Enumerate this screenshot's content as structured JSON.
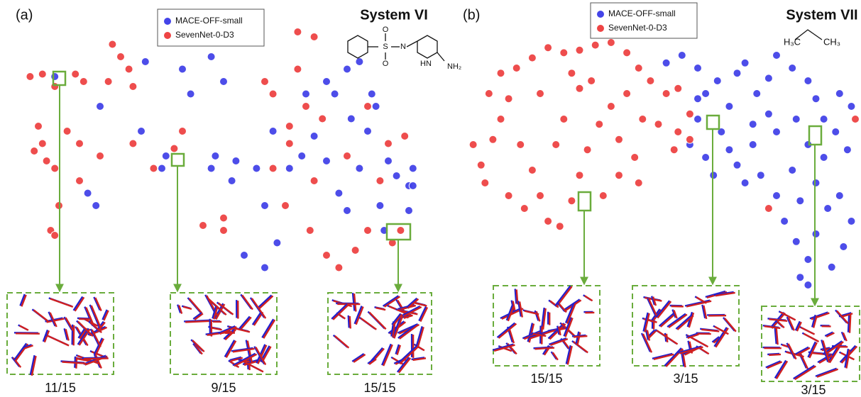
{
  "chart_data": [
    {
      "type": "scatter",
      "label": "(a)",
      "title": "System VI",
      "structure_labels": [
        "O",
        "S",
        "O",
        "N",
        "HN",
        "NH₂"
      ],
      "inset_labels": [
        "11/15",
        "9/15",
        "15/15"
      ],
      "xlim": [
        0,
        100
      ],
      "ylim": [
        0,
        100
      ],
      "series": [
        {
          "name": "MACE-OFF-small",
          "color": "#4444e8",
          "points": [
            [
              9,
              82
            ],
            [
              20,
              70
            ],
            [
              40,
              85
            ],
            [
              42,
              75
            ],
            [
              47,
              90
            ],
            [
              50,
              80
            ],
            [
              31,
              88
            ],
            [
              17,
              35
            ],
            [
              19,
              30
            ],
            [
              35,
              45
            ],
            [
              36,
              50
            ],
            [
              30,
              60
            ],
            [
              48,
              50
            ],
            [
              47,
              45
            ],
            [
              53,
              48
            ],
            [
              52,
              40
            ],
            [
              58,
              45
            ],
            [
              60,
              30
            ],
            [
              63,
              15
            ],
            [
              66,
              45
            ],
            [
              69,
              50
            ],
            [
              72,
              58
            ],
            [
              75,
              80
            ],
            [
              77,
              75
            ],
            [
              80,
              85
            ],
            [
              83,
              88
            ],
            [
              86,
              75
            ],
            [
              85,
              60
            ],
            [
              87,
              70
            ],
            [
              78,
              35
            ],
            [
              80,
              28
            ],
            [
              88,
              30
            ],
            [
              90,
              48
            ],
            [
              92,
              42
            ],
            [
              95,
              38
            ],
            [
              96,
              45
            ],
            [
              96,
              38
            ],
            [
              62,
              60
            ],
            [
              70,
              75
            ],
            [
              81,
              65
            ],
            [
              89,
              20
            ],
            [
              55,
              10
            ],
            [
              60,
              5
            ],
            [
              75,
              48
            ],
            [
              83,
              45
            ],
            [
              95,
              28
            ]
          ]
        },
        {
          "name": "SevenNet-0-D3",
          "color": "#ee4444",
          "points": [
            [
              3,
              82
            ],
            [
              6,
              83
            ],
            [
              9,
              78
            ],
            [
              14,
              83
            ],
            [
              16,
              80
            ],
            [
              22,
              80
            ],
            [
              25,
              90
            ],
            [
              23,
              95
            ],
            [
              27,
              85
            ],
            [
              28,
              78
            ],
            [
              5,
              62
            ],
            [
              4,
              52
            ],
            [
              7,
              48
            ],
            [
              9,
              45
            ],
            [
              6,
              55
            ],
            [
              12,
              60
            ],
            [
              15,
              55
            ],
            [
              10,
              30
            ],
            [
              8,
              20
            ],
            [
              9,
              18
            ],
            [
              15,
              40
            ],
            [
              20,
              50
            ],
            [
              28,
              55
            ],
            [
              33,
              45
            ],
            [
              38,
              53
            ],
            [
              40,
              60
            ],
            [
              45,
              22
            ],
            [
              50,
              20
            ],
            [
              50,
              25
            ],
            [
              60,
              80
            ],
            [
              62,
              75
            ],
            [
              68,
              85
            ],
            [
              70,
              70
            ],
            [
              66,
              55
            ],
            [
              65,
              30
            ],
            [
              71,
              20
            ],
            [
              75,
              10
            ],
            [
              78,
              5
            ],
            [
              82,
              12
            ],
            [
              85,
              20
            ],
            [
              88,
              40
            ],
            [
              90,
              55
            ],
            [
              94,
              58
            ],
            [
              80,
              50
            ],
            [
              74,
              65
            ],
            [
              72,
              40
            ],
            [
              85,
              70
            ],
            [
              68,
              100
            ],
            [
              72,
              98
            ],
            [
              66,
              62
            ],
            [
              62,
              45
            ],
            [
              93,
              20
            ],
            [
              91,
              15
            ]
          ]
        }
      ]
    },
    {
      "type": "scatter",
      "label": "(b)",
      "title": "System VII",
      "structure_labels": [
        "H₃C",
        "CH₃"
      ],
      "inset_labels": [
        "15/15",
        "3/15",
        "3/15"
      ],
      "xlim": [
        0,
        100
      ],
      "ylim": [
        0,
        100
      ],
      "series": [
        {
          "name": "MACE-OFF-small",
          "color": "#4444e8",
          "points": [
            [
              52,
              92
            ],
            [
              56,
              95
            ],
            [
              60,
              90
            ],
            [
              62,
              80
            ],
            [
              65,
              85
            ],
            [
              60,
              70
            ],
            [
              58,
              60
            ],
            [
              62,
              55
            ],
            [
              66,
              65
            ],
            [
              68,
              75
            ],
            [
              70,
              88
            ],
            [
              72,
              92
            ],
            [
              75,
              80
            ],
            [
              78,
              86
            ],
            [
              80,
              95
            ],
            [
              84,
              90
            ],
            [
              88,
              85
            ],
            [
              90,
              78
            ],
            [
              85,
              70
            ],
            [
              80,
              65
            ],
            [
              74,
              60
            ],
            [
              70,
              52
            ],
            [
              72,
              45
            ],
            [
              76,
              48
            ],
            [
              80,
              40
            ],
            [
              84,
              50
            ],
            [
              88,
              60
            ],
            [
              92,
              70
            ],
            [
              95,
              65
            ],
            [
              98,
              58
            ],
            [
              90,
              45
            ],
            [
              86,
              38
            ],
            [
              82,
              30
            ],
            [
              85,
              22
            ],
            [
              88,
              15
            ],
            [
              86,
              8
            ],
            [
              90,
              25
            ],
            [
              93,
              35
            ],
            [
              96,
              40
            ],
            [
              99,
              30
            ],
            [
              97,
              20
            ],
            [
              94,
              12
            ],
            [
              88,
              5
            ],
            [
              64,
              48
            ],
            [
              60,
              78
            ],
            [
              78,
              72
            ],
            [
              92,
              55
            ],
            [
              96,
              80
            ],
            [
              99,
              75
            ],
            [
              74,
              68
            ],
            [
              68,
              58
            ]
          ]
        },
        {
          "name": "SevenNet-0-D3",
          "color": "#ee4444",
          "points": [
            [
              3,
              60
            ],
            [
              5,
              52
            ],
            [
              6,
              45
            ],
            [
              8,
              62
            ],
            [
              10,
              70
            ],
            [
              12,
              78
            ],
            [
              10,
              88
            ],
            [
              14,
              90
            ],
            [
              18,
              94
            ],
            [
              22,
              98
            ],
            [
              26,
              96
            ],
            [
              30,
              97
            ],
            [
              34,
              99
            ],
            [
              38,
              100
            ],
            [
              42,
              96
            ],
            [
              45,
              90
            ],
            [
              48,
              85
            ],
            [
              52,
              80
            ],
            [
              55,
              82
            ],
            [
              15,
              60
            ],
            [
              18,
              50
            ],
            [
              20,
              40
            ],
            [
              22,
              30
            ],
            [
              25,
              28
            ],
            [
              28,
              38
            ],
            [
              30,
              48
            ],
            [
              32,
              58
            ],
            [
              35,
              68
            ],
            [
              38,
              75
            ],
            [
              40,
              62
            ],
            [
              44,
              55
            ],
            [
              36,
              40
            ],
            [
              26,
              70
            ],
            [
              20,
              80
            ],
            [
              30,
              82
            ],
            [
              42,
              80
            ],
            [
              12,
              40
            ],
            [
              16,
              35
            ],
            [
              24,
              60
            ],
            [
              46,
              70
            ],
            [
              50,
              68
            ],
            [
              55,
              65
            ],
            [
              58,
              62
            ],
            [
              28,
              88
            ],
            [
              7,
              80
            ],
            [
              40,
              48
            ],
            [
              45,
              45
            ],
            [
              33,
              85
            ],
            [
              78,
              35
            ],
            [
              100,
              70
            ],
            [
              58,
              72
            ],
            [
              54,
              58
            ]
          ]
        }
      ]
    }
  ]
}
